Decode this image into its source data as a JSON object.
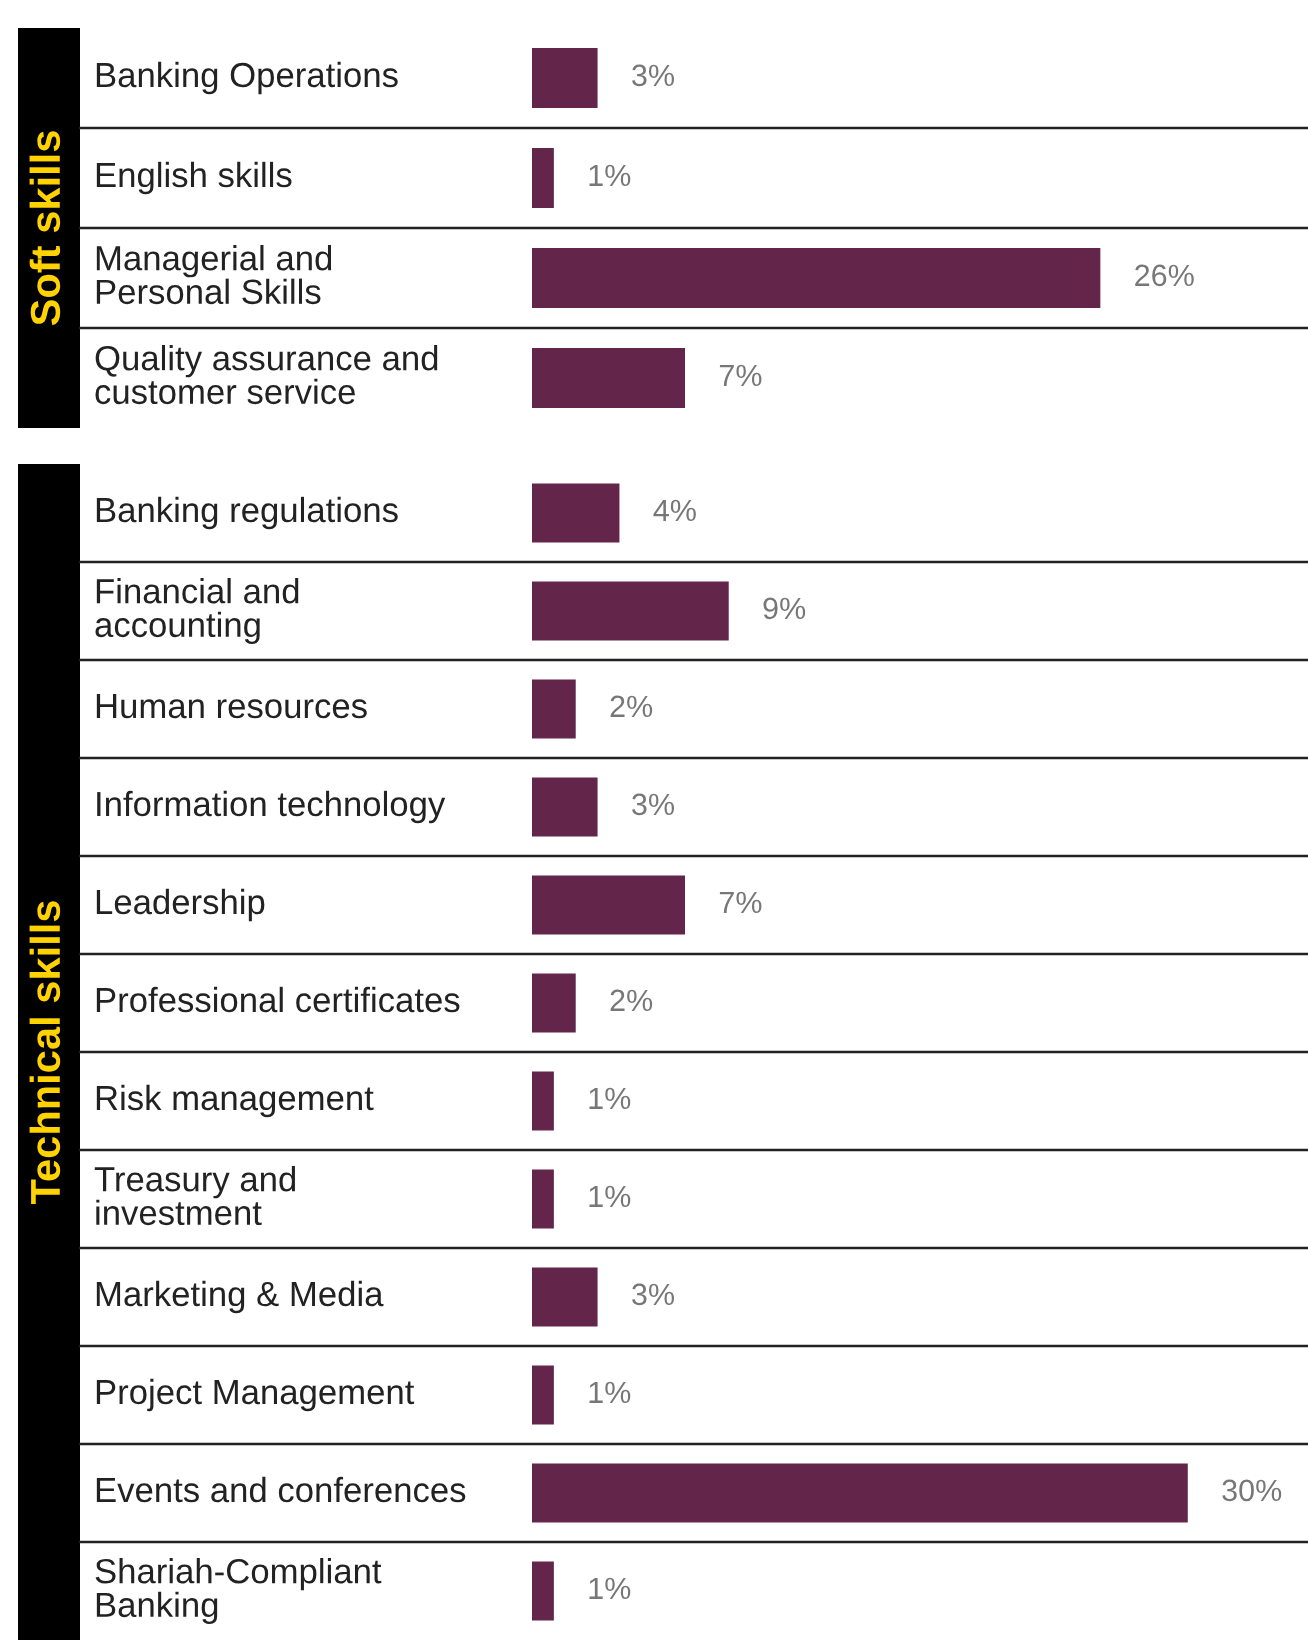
{
  "chart_data": [
    {
      "type": "bar",
      "orientation": "horizontal",
      "title": "Soft skills",
      "categories": [
        "Banking Operations",
        "English skills",
        "Managerial and\nPersonal Skills",
        "Quality assurance and\ncustomer service"
      ],
      "values": [
        3,
        1,
        26,
        7
      ],
      "value_labels": [
        "3%",
        "1%",
        "26%",
        "7%"
      ],
      "color": "#63264a",
      "xlim": [
        0,
        35.5
      ]
    },
    {
      "type": "bar",
      "orientation": "horizontal",
      "title": "Technical skills",
      "categories": [
        "Banking regulations",
        "Financial and\naccounting",
        "Human resources",
        "Information technology",
        "Leadership",
        "Professional certificates",
        "Risk management",
        "Treasury and\ninvestment",
        "Marketing & Media",
        "Project Management",
        "Events and conferences",
        "Shariah-Compliant\nBanking"
      ],
      "values": [
        4,
        9,
        2,
        3,
        7,
        2,
        1,
        1,
        3,
        1,
        30,
        1
      ],
      "value_labels": [
        "4%",
        "9%",
        "2%",
        "3%",
        "7%",
        "2%",
        "1%",
        "1%",
        "3%",
        "1%",
        "30%",
        "1%"
      ],
      "color": "#63264a",
      "xlim": [
        0,
        35.5
      ]
    }
  ]
}
